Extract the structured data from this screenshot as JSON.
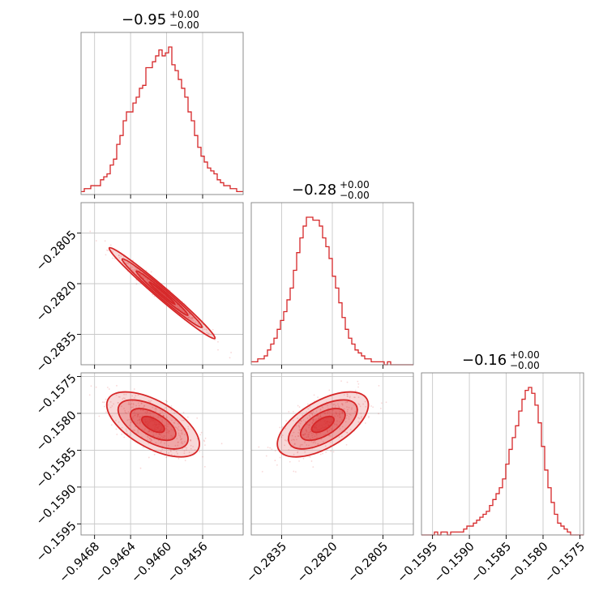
{
  "chart_data": {
    "type": "corner",
    "color": "#d62728",
    "parameters": [
      {
        "name": "p0",
        "title": "−0.95",
        "title_sup": "+0.00",
        "title_sub": "−0.00",
        "range": [
          -0.94695,
          -0.94515
        ],
        "ticks": [
          -0.9468,
          -0.9464,
          -0.946,
          -0.9456
        ],
        "tick_labels": [
          "−0.9468",
          "−0.9464",
          "−0.9460",
          "−0.9456"
        ]
      },
      {
        "name": "p1",
        "title": "−0.28",
        "title_sup": "+0.00",
        "title_sub": "−0.00",
        "range": [
          -0.2844,
          -0.2796
        ],
        "ticks": [
          -0.2835,
          -0.282,
          -0.2805
        ],
        "tick_labels": [
          "−0.2835",
          "−0.2820",
          "−0.2805"
        ]
      },
      {
        "name": "p2",
        "title": "−0.16",
        "title_sup": "+0.00",
        "title_sub": "−0.00",
        "range": [
          -0.15965,
          -0.15745
        ],
        "ticks": [
          -0.1595,
          -0.159,
          -0.1585,
          -0.158,
          -0.1575
        ],
        "tick_labels": [
          "−0.1595",
          "−0.1590",
          "−0.1585",
          "−0.1580",
          "−0.1575"
        ]
      }
    ],
    "histograms": [
      {
        "param": 0,
        "bin_start": -0.94695,
        "bin_width": 3.6e-05,
        "counts": [
          1,
          2,
          2,
          3,
          3,
          3,
          5,
          6,
          7,
          10,
          12,
          17,
          20,
          25,
          28,
          28,
          31,
          33,
          36,
          37,
          43,
          43,
          45,
          47,
          49,
          47,
          48,
          50,
          44,
          42,
          39,
          36,
          33,
          28,
          25,
          20,
          16,
          13,
          11,
          9,
          8,
          7,
          5,
          4,
          3,
          3,
          2,
          2,
          1,
          1
        ]
      },
      {
        "param": 1,
        "bin_start": -0.2844,
        "bin_width": 9.6e-05,
        "counts": [
          1,
          1,
          2,
          2,
          3,
          5,
          7,
          9,
          12,
          15,
          18,
          22,
          26,
          32,
          38,
          43,
          47,
          50,
          50,
          49,
          49,
          47,
          43,
          40,
          36,
          30,
          26,
          21,
          16,
          12,
          9,
          7,
          5,
          4,
          3,
          2,
          2,
          1,
          1,
          1,
          1,
          0,
          1,
          0,
          0,
          0,
          0,
          0,
          0,
          0
        ]
      },
      {
        "param": 2,
        "bin_start": -0.15965,
        "bin_width": 4.4e-05,
        "counts": [
          0,
          0,
          0,
          0,
          1,
          0,
          1,
          1,
          0,
          1,
          1,
          1,
          1,
          2,
          3,
          3,
          4,
          5,
          6,
          7,
          8,
          10,
          12,
          14,
          16,
          19,
          24,
          29,
          33,
          37,
          42,
          46,
          49,
          50,
          48,
          44,
          38,
          30,
          22,
          16,
          11,
          7,
          4,
          3,
          2,
          1,
          0,
          0,
          0,
          0
        ]
      }
    ],
    "pairs": [
      {
        "x_param": 0,
        "y_param": 1,
        "rho": -0.985,
        "center": [
          -0.94605,
          -0.28228
        ],
        "sigma": [
          0.00024,
          0.00055
        ]
      },
      {
        "x_param": 0,
        "y_param": 2,
        "rho": -0.6,
        "center": [
          -0.94615,
          -0.15815
        ],
        "sigma": [
          0.00021,
          0.00018
        ]
      },
      {
        "x_param": 1,
        "y_param": 2,
        "rho": 0.6,
        "center": [
          -0.28228,
          -0.15815
        ],
        "sigma": [
          0.00055,
          0.00018
        ]
      }
    ],
    "grid": true
  }
}
